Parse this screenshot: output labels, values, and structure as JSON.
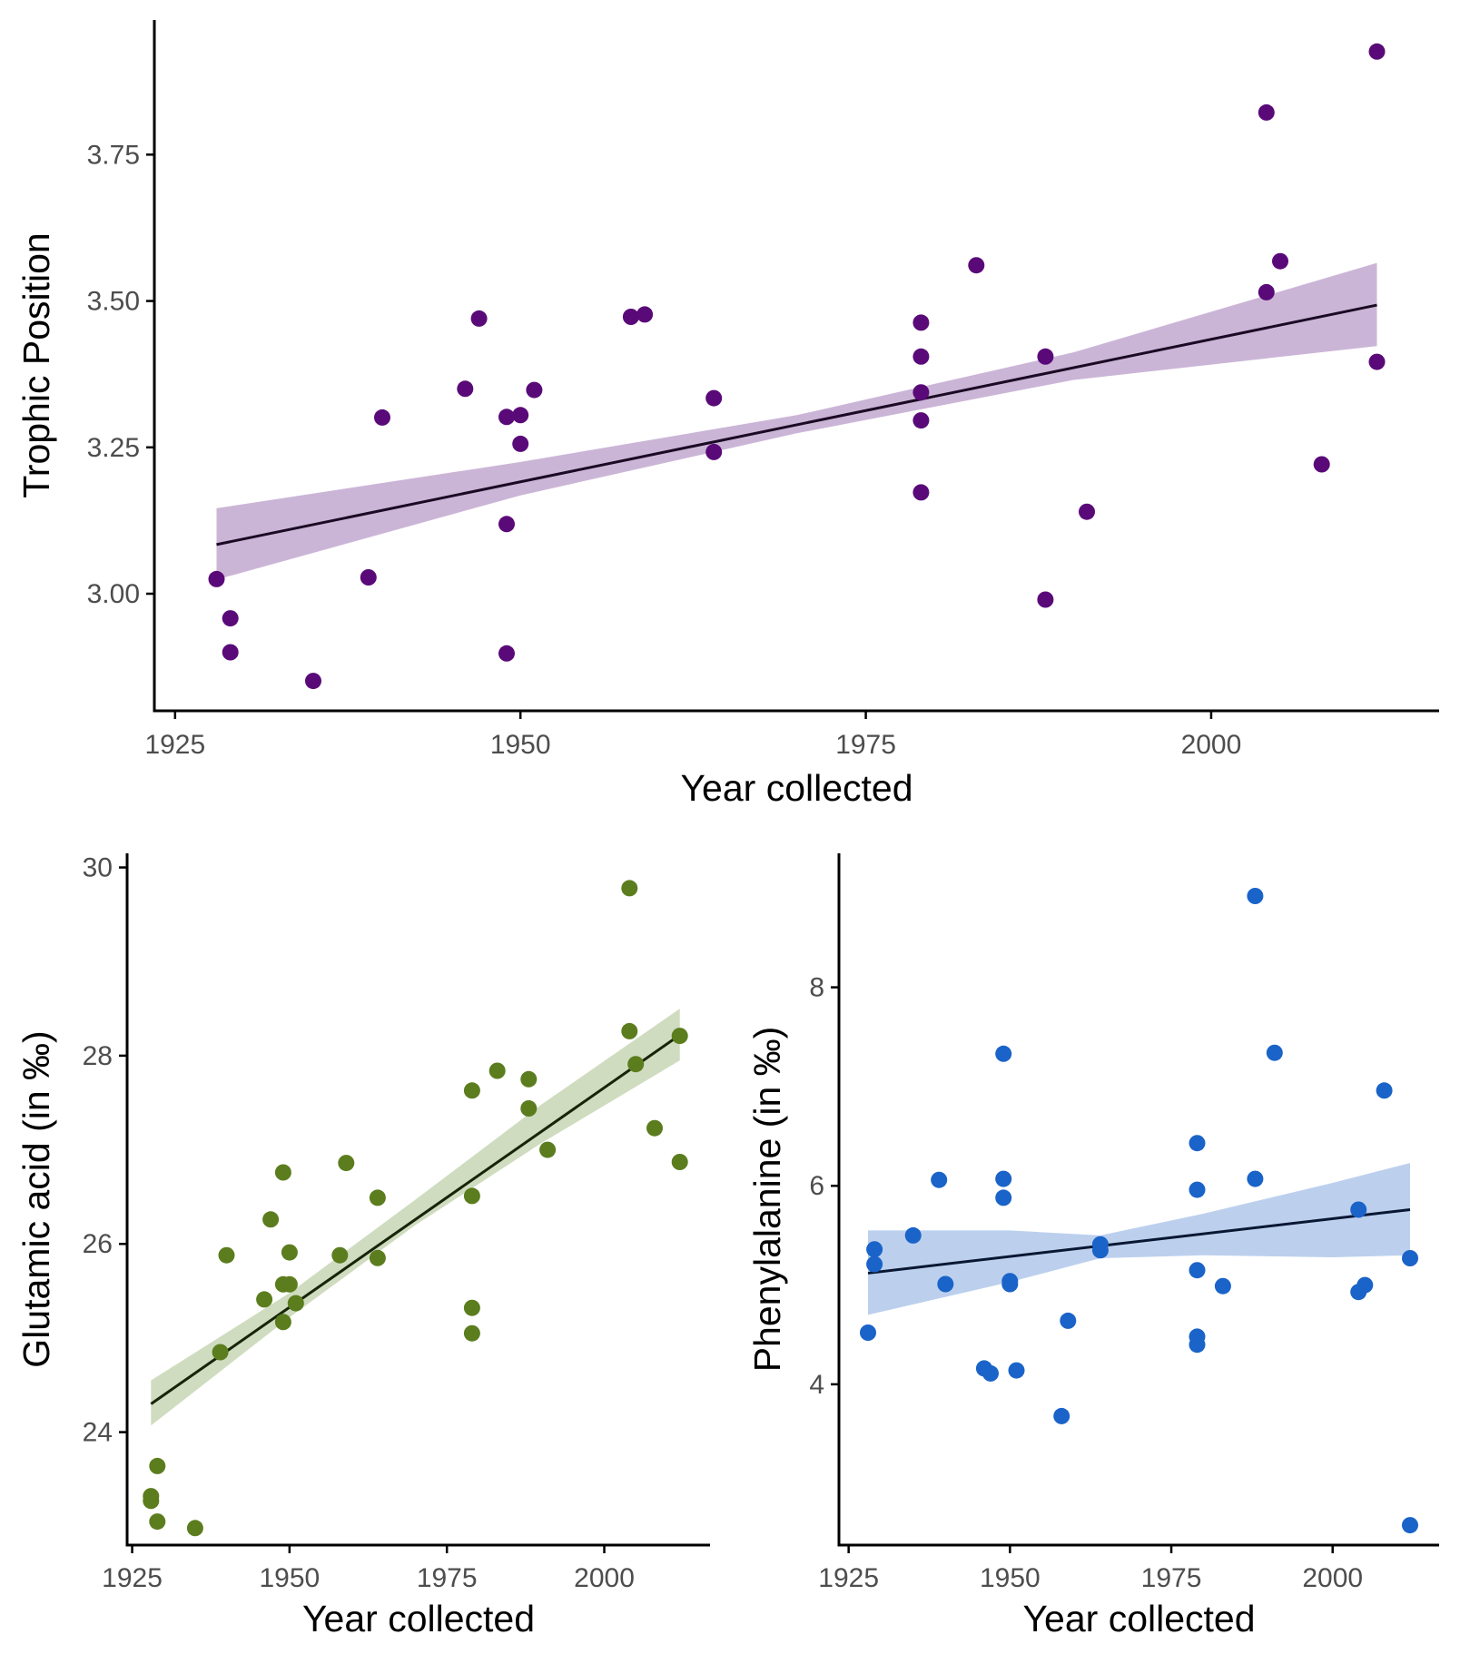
{
  "chart_data": [
    {
      "type": "scatter",
      "xlabel": "Year collected",
      "ylabel": "Trophic Position",
      "xlim": [
        1923.5,
        2016.5
      ],
      "ylim": [
        2.8,
        3.98
      ],
      "x_ticks": [
        1925,
        1950,
        1975,
        2000
      ],
      "y_ticks": [
        3.0,
        3.25,
        3.5,
        3.75
      ],
      "y_tick_labels": [
        "3.00",
        "3.25",
        "3.50",
        "3.75"
      ],
      "point_color": "#5a0a78",
      "band_color": "#cbb5d7",
      "line_color": "#1a0a24",
      "fit": {
        "x": [
          1928,
          2012
        ],
        "y": [
          3.084,
          3.493
        ]
      },
      "band": {
        "x": [
          1928,
          1950,
          1970,
          1990,
          2012
        ],
        "lower": [
          3.024,
          3.168,
          3.274,
          3.365,
          3.423
        ],
        "upper": [
          3.146,
          3.225,
          3.305,
          3.412,
          3.565
        ]
      },
      "points": [
        {
          "x": 1928,
          "y": 3.025
        },
        {
          "x": 1929,
          "y": 2.958
        },
        {
          "x": 1929,
          "y": 2.9
        },
        {
          "x": 1935,
          "y": 2.851
        },
        {
          "x": 1939,
          "y": 3.028
        },
        {
          "x": 1940,
          "y": 3.301
        },
        {
          "x": 1946,
          "y": 3.35
        },
        {
          "x": 1947,
          "y": 3.47
        },
        {
          "x": 1949,
          "y": 3.302
        },
        {
          "x": 1949,
          "y": 3.119
        },
        {
          "x": 1949,
          "y": 2.898
        },
        {
          "x": 1950,
          "y": 3.305
        },
        {
          "x": 1950,
          "y": 3.256
        },
        {
          "x": 1951,
          "y": 3.348
        },
        {
          "x": 1958,
          "y": 3.473
        },
        {
          "x": 1959,
          "y": 3.477
        },
        {
          "x": 1964,
          "y": 3.334
        },
        {
          "x": 1964,
          "y": 3.242
        },
        {
          "x": 1979,
          "y": 3.463
        },
        {
          "x": 1979,
          "y": 3.405
        },
        {
          "x": 1979,
          "y": 3.344
        },
        {
          "x": 1979,
          "y": 3.296
        },
        {
          "x": 1979,
          "y": 3.173
        },
        {
          "x": 1983,
          "y": 3.561
        },
        {
          "x": 1988,
          "y": 3.405
        },
        {
          "x": 1988,
          "y": 2.99
        },
        {
          "x": 1991,
          "y": 3.14
        },
        {
          "x": 2004,
          "y": 3.822
        },
        {
          "x": 2004,
          "y": 3.515
        },
        {
          "x": 2005,
          "y": 3.568
        },
        {
          "x": 2008,
          "y": 3.221
        },
        {
          "x": 2012,
          "y": 3.926
        },
        {
          "x": 2012,
          "y": 3.396
        }
      ]
    },
    {
      "type": "scatter",
      "xlabel": "Year collected",
      "ylabel": "Glutamic acid (in ‰)",
      "xlim": [
        1924.2,
        2016.8
      ],
      "ylim": [
        22.8,
        30.15
      ],
      "x_ticks": [
        1925,
        1950,
        1975,
        2000
      ],
      "y_ticks": [
        24,
        26,
        28,
        30
      ],
      "y_tick_labels": [
        "24",
        "26",
        "28",
        "30"
      ],
      "point_color": "#5b7d1e",
      "band_color": "#cfdcbf",
      "line_color": "#17240a",
      "fit": {
        "x": [
          1928,
          2012
        ],
        "y": [
          24.3,
          28.22
        ]
      },
      "band": {
        "x": [
          1928,
          1950,
          1970,
          1990,
          2012
        ],
        "lower": [
          24.07,
          25.22,
          26.2,
          27.07,
          27.95
        ],
        "upper": [
          24.55,
          25.48,
          26.47,
          27.48,
          28.5
        ]
      },
      "points": [
        {
          "x": 1928,
          "y": 23.32
        },
        {
          "x": 1928,
          "y": 23.27
        },
        {
          "x": 1929,
          "y": 23.64
        },
        {
          "x": 1929,
          "y": 23.05
        },
        {
          "x": 1935,
          "y": 22.98
        },
        {
          "x": 1939,
          "y": 24.85
        },
        {
          "x": 1940,
          "y": 25.88
        },
        {
          "x": 1946,
          "y": 25.41
        },
        {
          "x": 1947,
          "y": 26.26
        },
        {
          "x": 1949,
          "y": 26.76
        },
        {
          "x": 1949,
          "y": 25.57
        },
        {
          "x": 1949,
          "y": 25.17
        },
        {
          "x": 1950,
          "y": 25.91
        },
        {
          "x": 1950,
          "y": 25.57
        },
        {
          "x": 1951,
          "y": 25.37
        },
        {
          "x": 1958,
          "y": 25.88
        },
        {
          "x": 1959,
          "y": 26.86
        },
        {
          "x": 1964,
          "y": 26.49
        },
        {
          "x": 1964,
          "y": 25.85
        },
        {
          "x": 1979,
          "y": 27.63
        },
        {
          "x": 1979,
          "y": 26.51
        },
        {
          "x": 1979,
          "y": 25.32
        },
        {
          "x": 1979,
          "y": 25.05
        },
        {
          "x": 1983,
          "y": 27.84
        },
        {
          "x": 1988,
          "y": 27.75
        },
        {
          "x": 1988,
          "y": 27.44
        },
        {
          "x": 1991,
          "y": 27.0
        },
        {
          "x": 2004,
          "y": 29.78
        },
        {
          "x": 2004,
          "y": 28.26
        },
        {
          "x": 2005,
          "y": 27.91
        },
        {
          "x": 2008,
          "y": 27.23
        },
        {
          "x": 2012,
          "y": 28.21
        },
        {
          "x": 2012,
          "y": 26.87
        }
      ]
    },
    {
      "type": "scatter",
      "xlabel": "Year collected",
      "ylabel": "Phenylalanine (in ‰)",
      "xlim": [
        1923.5,
        2016.5
      ],
      "ylim": [
        2.38,
        9.35
      ],
      "x_ticks": [
        1925,
        1950,
        1975,
        2000
      ],
      "y_ticks": [
        4,
        6,
        8
      ],
      "y_tick_labels": [
        "4",
        "6",
        "8"
      ],
      "point_color": "#1a63c8",
      "band_color": "#bcd0ee",
      "line_color": "#0a1733",
      "fit": {
        "x": [
          1928,
          2012
        ],
        "y": [
          5.12,
          5.76
        ]
      },
      "band": {
        "x": [
          1928,
          1950,
          1964,
          1980,
          2000,
          2012
        ],
        "lower": [
          4.7,
          5.03,
          5.27,
          5.3,
          5.28,
          5.3
        ],
        "upper": [
          5.55,
          5.55,
          5.5,
          5.72,
          6.03,
          6.23
        ]
      },
      "points": [
        {
          "x": 1928,
          "y": 4.52
        },
        {
          "x": 1929,
          "y": 5.36
        },
        {
          "x": 1929,
          "y": 5.21
        },
        {
          "x": 1935,
          "y": 5.5
        },
        {
          "x": 1939,
          "y": 6.06
        },
        {
          "x": 1940,
          "y": 5.01
        },
        {
          "x": 1946,
          "y": 4.16
        },
        {
          "x": 1947,
          "y": 4.11
        },
        {
          "x": 1949,
          "y": 7.33
        },
        {
          "x": 1949,
          "y": 6.07
        },
        {
          "x": 1949,
          "y": 5.88
        },
        {
          "x": 1950,
          "y": 5.04
        },
        {
          "x": 1950,
          "y": 5.01
        },
        {
          "x": 1951,
          "y": 4.14
        },
        {
          "x": 1958,
          "y": 3.68
        },
        {
          "x": 1959,
          "y": 4.64
        },
        {
          "x": 1964,
          "y": 5.41
        },
        {
          "x": 1964,
          "y": 5.35
        },
        {
          "x": 1979,
          "y": 6.43
        },
        {
          "x": 1979,
          "y": 5.96
        },
        {
          "x": 1979,
          "y": 5.15
        },
        {
          "x": 1979,
          "y": 4.48
        },
        {
          "x": 1979,
          "y": 4.4
        },
        {
          "x": 1983,
          "y": 4.99
        },
        {
          "x": 1988,
          "y": 8.92
        },
        {
          "x": 1988,
          "y": 6.07
        },
        {
          "x": 1991,
          "y": 7.34
        },
        {
          "x": 2004,
          "y": 5.76
        },
        {
          "x": 2004,
          "y": 4.93
        },
        {
          "x": 2005,
          "y": 5.0
        },
        {
          "x": 2008,
          "y": 6.96
        },
        {
          "x": 2012,
          "y": 5.27
        },
        {
          "x": 2012,
          "y": 2.58
        }
      ]
    }
  ]
}
